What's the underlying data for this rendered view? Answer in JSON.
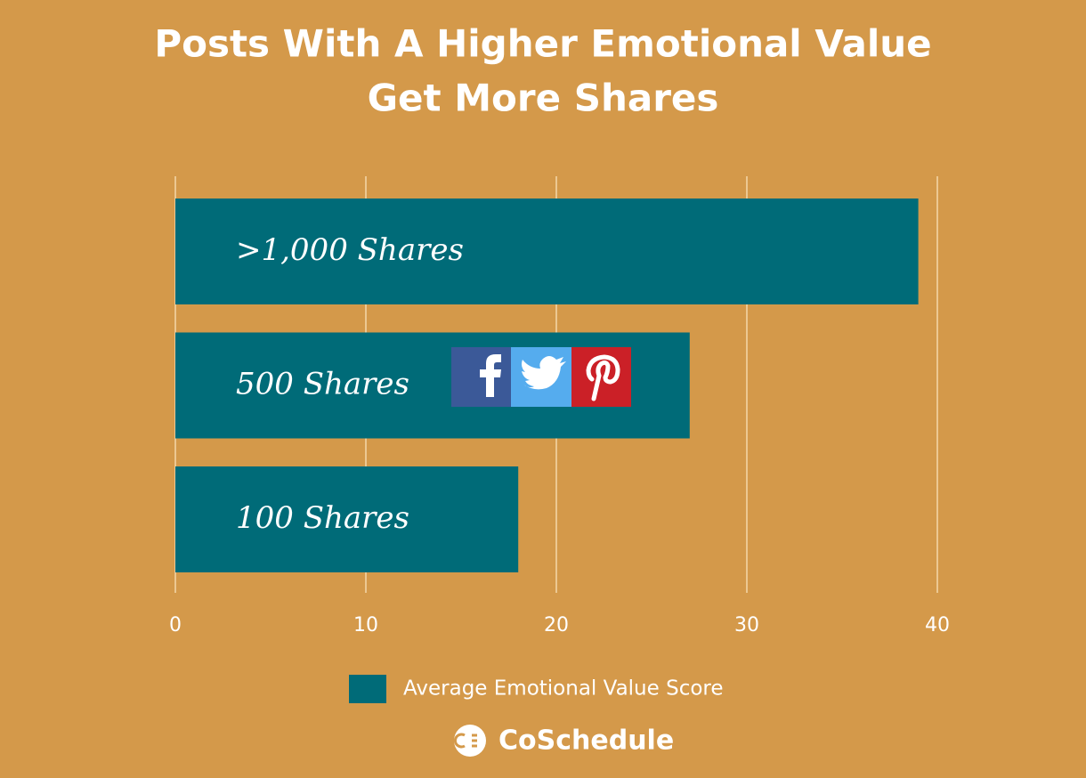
{
  "chart_data": {
    "type": "bar",
    "orientation": "horizontal",
    "title": [
      "Posts With A Higher Emotional Value",
      "Get More Shares"
    ],
    "categories": [
      ">1,000 Shares",
      "500 Shares",
      "100 Shares"
    ],
    "series": [
      {
        "name": "Average Emotional Value Score",
        "color": "#006b78",
        "values": [
          39,
          27,
          18
        ]
      }
    ],
    "xlim": [
      0,
      40
    ],
    "xticks": [
      0,
      10,
      20,
      30,
      40
    ],
    "grid": true
  },
  "brand": "CoSchedule"
}
